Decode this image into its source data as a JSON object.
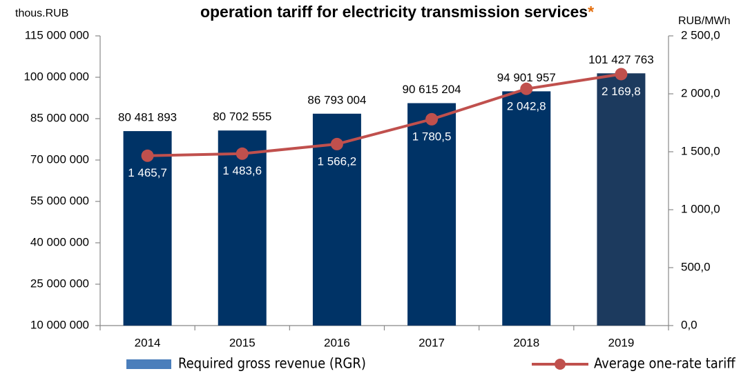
{
  "chart_data": {
    "type": "bar_line",
    "title": "operation tariff for electricity transmission services",
    "title_note": "*",
    "title_note_color": "#e46c0a",
    "y_label": "thous.RUB",
    "y2_label": "RUB/MWh",
    "categories": [
      "2014",
      "2015",
      "2016",
      "2017",
      "2018",
      "2019"
    ],
    "series": [
      {
        "name": "Required gross revenue (RGR)",
        "type": "bar",
        "color": "#4a7ebb",
        "bar_colors": [
          "#003366",
          "#003366",
          "#003366",
          "#003366",
          "#003366",
          "#1c3a5e"
        ],
        "values": [
          80481893,
          80702555,
          86793004,
          90615204,
          94901957,
          101427763
        ],
        "value_labels": [
          "80 481 893",
          "80 702 555",
          "86 793 004",
          "90 615 204",
          "94 901 957",
          "101 427 763"
        ]
      },
      {
        "name": "Average one-rate tariff",
        "type": "line",
        "axis": "y2",
        "color": "#c0504d",
        "values": [
          1465.7,
          1483.6,
          1566.2,
          1780.5,
          2042.8,
          2169.8
        ],
        "value_labels": [
          "1 465,7",
          "1 483,6",
          "1 566,2",
          "1 780,5",
          "2 042,8",
          "2 169,8"
        ]
      }
    ],
    "ylim": [
      10000000,
      115000000
    ],
    "yticks": [
      {
        "value": 10000000,
        "label": "10 000 000"
      },
      {
        "value": 25000000,
        "label": "25 000 000"
      },
      {
        "value": 40000000,
        "label": "40 000 000"
      },
      {
        "value": 55000000,
        "label": "55 000 000"
      },
      {
        "value": 70000000,
        "label": "70 000 000"
      },
      {
        "value": 85000000,
        "label": "85 000 000"
      },
      {
        "value": 100000000,
        "label": "100 000 000"
      },
      {
        "value": 115000000,
        "label": "115 000 000"
      }
    ],
    "y2lim": [
      0,
      2500
    ],
    "y2ticks": [
      {
        "value": 0,
        "label": "0,0"
      },
      {
        "value": 500,
        "label": "500,0"
      },
      {
        "value": 1000,
        "label": "1 000,0"
      },
      {
        "value": 1500,
        "label": "1 500,0"
      },
      {
        "value": 2000,
        "label": "2 000,0"
      },
      {
        "value": 2500,
        "label": "2 500,0"
      }
    ],
    "legend": "bottom"
  }
}
